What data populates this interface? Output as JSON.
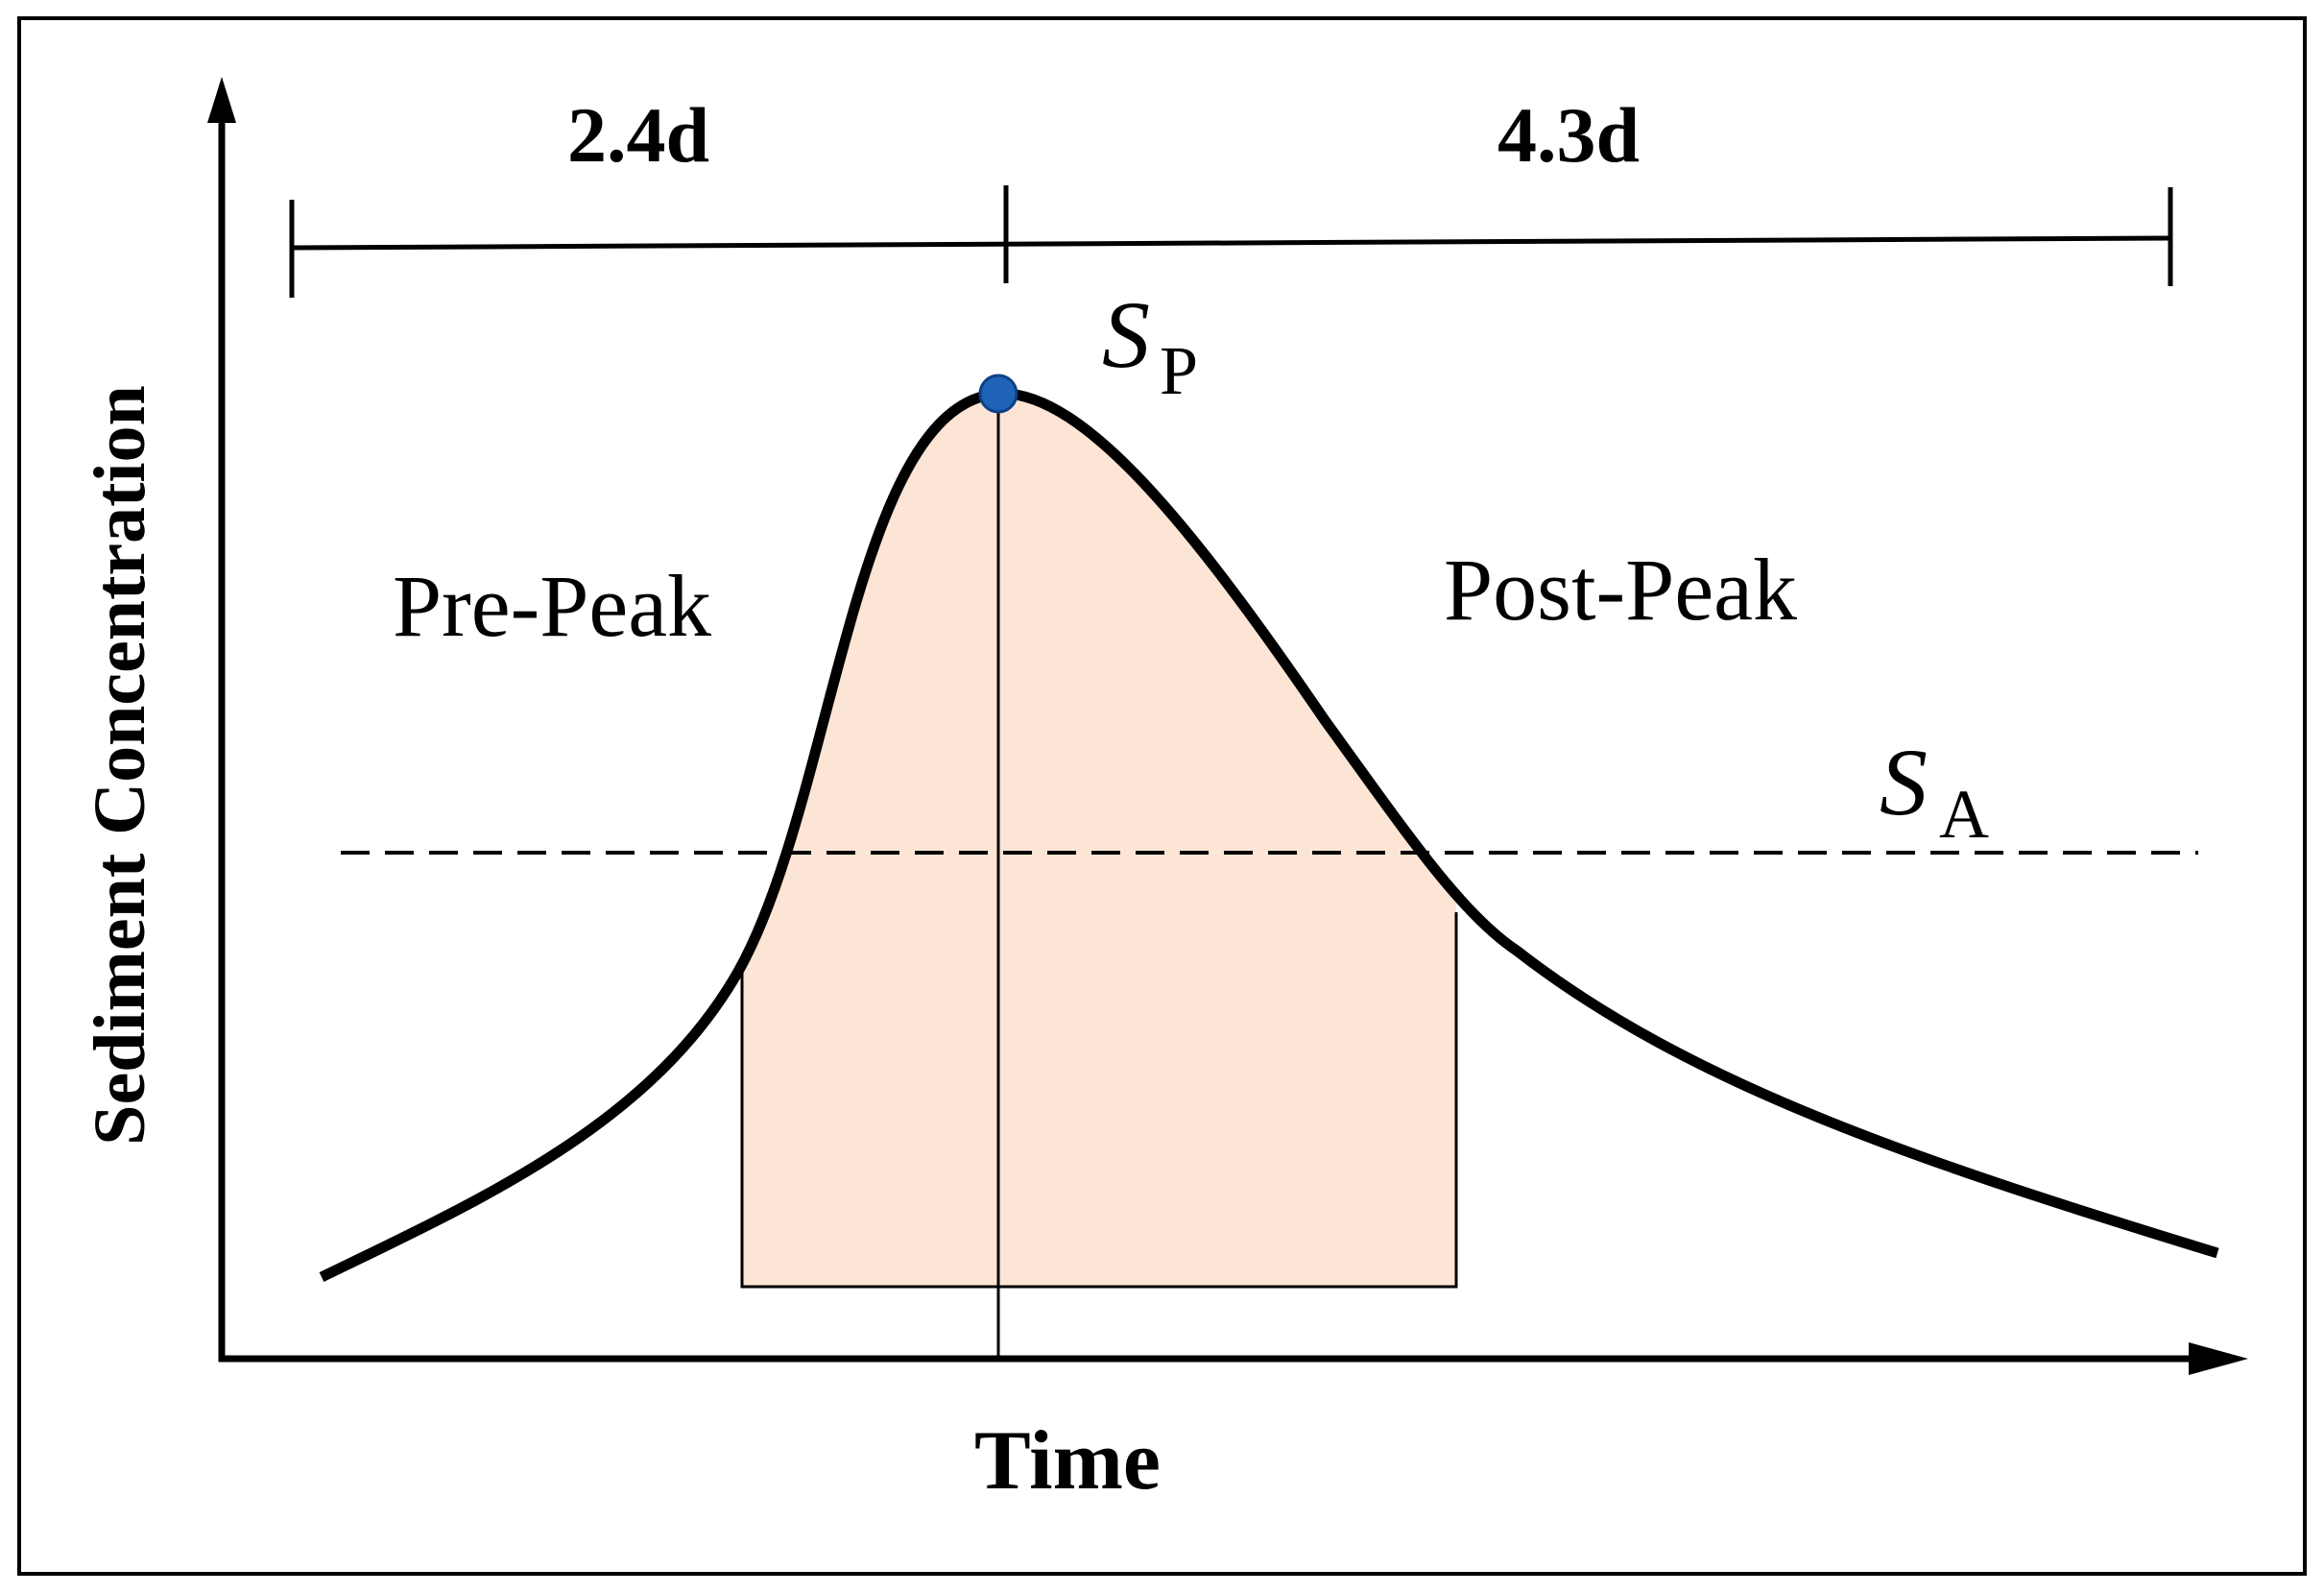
{
  "diagram": {
    "y_axis_label": "Sediment Concentration",
    "x_axis_label": "Time",
    "duration_before_peak": "2.4d",
    "duration_after_peak": "4.3d",
    "peak_label": {
      "main": "S",
      "subscript": "P"
    },
    "threshold_label": {
      "main": "S",
      "subscript": "A"
    },
    "region_before_peak": "Pre-Peak",
    "region_after_peak": "Post-Peak",
    "colors": {
      "curve": "#000000",
      "shaded_area": "#fde5d6",
      "peak_point": "#1f63b6",
      "peak_point_edge": "#0d3f86",
      "threshold_line": "#000000"
    }
  }
}
